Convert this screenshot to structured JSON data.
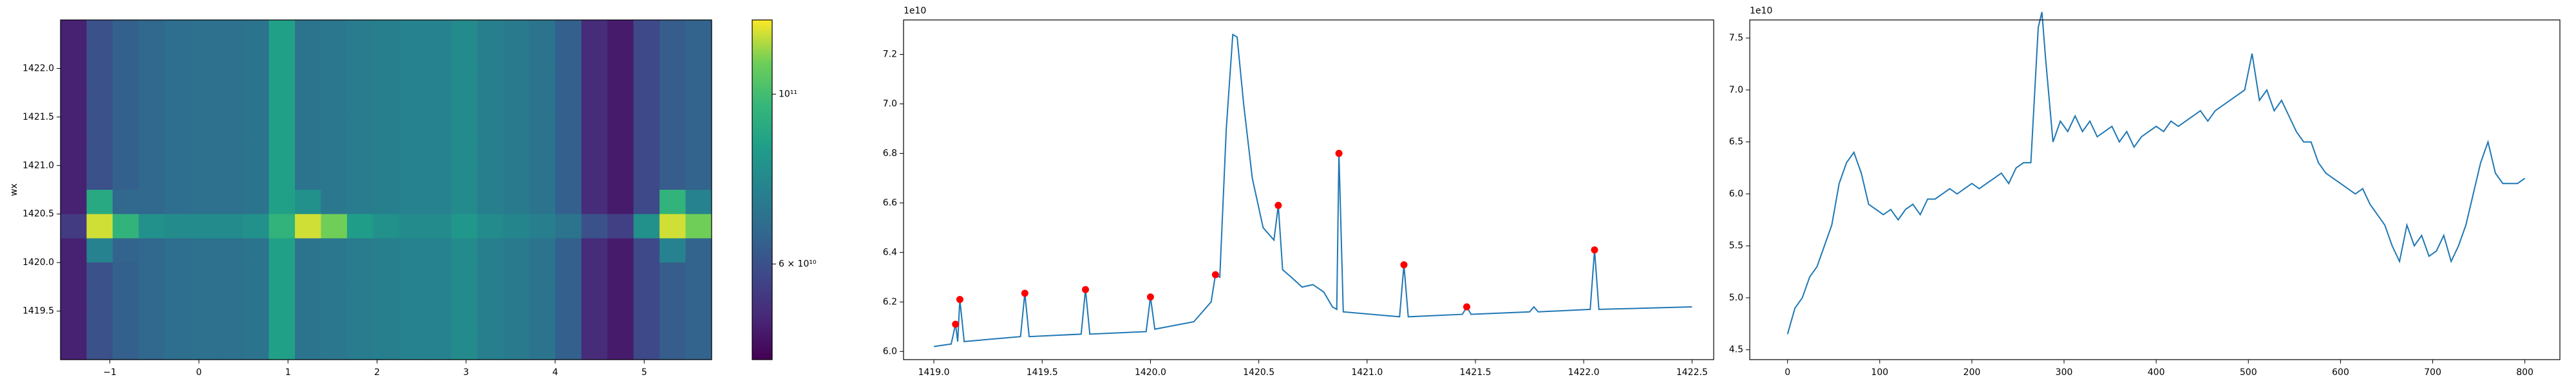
{
  "chart_data": [
    {
      "type": "heatmap",
      "ylabel": "wx",
      "colormap": "viridis",
      "xlim": [
        -1.554,
        5.757
      ],
      "ylim": [
        1419.0,
        1422.5
      ],
      "xticks": [
        {
          "value": -1,
          "label": "−1"
        },
        0,
        1,
        2,
        3,
        4,
        5
      ],
      "yticks": [
        1419.5,
        {
          "value": 1420.0,
          "label": "1420.0"
        },
        1420.5,
        {
          "value": 1421.0,
          "label": "1421.0"
        },
        1421.5,
        {
          "value": 1422.0,
          "label": "1422.0"
        }
      ],
      "z": [
        [
          50000000000.0,
          60000000000.0,
          64000000000.0,
          66000000000.0,
          68000000000.0,
          69000000000.0,
          69000000000.0,
          70000000000.0,
          86000000000.0,
          70000000000.0,
          71000000000.0,
          73000000000.0,
          74000000000.0,
          75000000000.0,
          75000000000.0,
          78000000000.0,
          74000000000.0,
          72000000000.0,
          70000000000.0,
          64000000000.0,
          52000000000.0,
          49000000000.0,
          58000000000.0,
          63000000000.0,
          65000000000.0
        ],
        [
          50000000000.0,
          60000000000.0,
          64000000000.0,
          66000000000.0,
          68000000000.0,
          69000000000.0,
          69000000000.0,
          70000000000.0,
          86000000000.0,
          70000000000.0,
          71000000000.0,
          73000000000.0,
          74000000000.0,
          75000000000.0,
          75000000000.0,
          78000000000.0,
          74000000000.0,
          72000000000.0,
          70000000000.0,
          64000000000.0,
          52000000000.0,
          49000000000.0,
          58000000000.0,
          63000000000.0,
          65000000000.0
        ],
        [
          50000000000.0,
          60000000000.0,
          64000000000.0,
          66000000000.0,
          68000000000.0,
          69000000000.0,
          69000000000.0,
          70000000000.0,
          86000000000.0,
          70000000000.0,
          71000000000.0,
          73000000000.0,
          74000000000.0,
          75000000000.0,
          75000000000.0,
          78000000000.0,
          74000000000.0,
          72000000000.0,
          70000000000.0,
          64000000000.0,
          52000000000.0,
          49000000000.0,
          58000000000.0,
          63000000000.0,
          65000000000.0
        ],
        [
          50000000000.0,
          60000000000.0,
          64000000000.0,
          66000000000.0,
          68000000000.0,
          69000000000.0,
          69000000000.0,
          70000000000.0,
          86000000000.0,
          70000000000.0,
          71000000000.0,
          73000000000.0,
          74000000000.0,
          75000000000.0,
          75000000000.0,
          78000000000.0,
          74000000000.0,
          72000000000.0,
          70000000000.0,
          64000000000.0,
          52000000000.0,
          49000000000.0,
          58000000000.0,
          63000000000.0,
          65000000000.0
        ],
        [
          50000000000.0,
          60000000000.0,
          64000000000.0,
          66000000000.0,
          68000000000.0,
          69000000000.0,
          69000000000.0,
          70000000000.0,
          86000000000.0,
          70000000000.0,
          71000000000.0,
          73000000000.0,
          74000000000.0,
          75000000000.0,
          75000000000.0,
          78000000000.0,
          74000000000.0,
          72000000000.0,
          70000000000.0,
          64000000000.0,
          52000000000.0,
          49000000000.0,
          58000000000.0,
          63000000000.0,
          65000000000.0
        ],
        [
          50000000000.0,
          60000000000.0,
          64000000000.0,
          66000000000.0,
          68000000000.0,
          69000000000.0,
          69000000000.0,
          70000000000.0,
          86000000000.0,
          70000000000.0,
          71000000000.0,
          73000000000.0,
          74000000000.0,
          75000000000.0,
          75000000000.0,
          78000000000.0,
          74000000000.0,
          72000000000.0,
          70000000000.0,
          64000000000.0,
          52000000000.0,
          49000000000.0,
          58000000000.0,
          63000000000.0,
          65000000000.0
        ],
        [
          50000000000.0,
          60000000000.0,
          64000000000.0,
          66000000000.0,
          68000000000.0,
          69000000000.0,
          69000000000.0,
          70000000000.0,
          86000000000.0,
          70000000000.0,
          71000000000.0,
          73000000000.0,
          74000000000.0,
          75000000000.0,
          75000000000.0,
          78000000000.0,
          74000000000.0,
          72000000000.0,
          70000000000.0,
          64000000000.0,
          52000000000.0,
          49000000000.0,
          58000000000.0,
          63000000000.0,
          65000000000.0
        ],
        [
          50000000000.0,
          90000000000.0,
          66000000000.0,
          66000000000.0,
          68000000000.0,
          69000000000.0,
          69000000000.0,
          70000000000.0,
          86000000000.0,
          80000000000.0,
          71000000000.0,
          73000000000.0,
          74000000000.0,
          75000000000.0,
          75000000000.0,
          78000000000.0,
          74000000000.0,
          72000000000.0,
          70000000000.0,
          64000000000.0,
          52000000000.0,
          49000000000.0,
          58000000000.0,
          95000000000.0,
          75000000000.0
        ],
        [
          55000000000.0,
          120000000000.0,
          95000000000.0,
          80000000000.0,
          78000000000.0,
          78000000000.0,
          78000000000.0,
          80000000000.0,
          95000000000.0,
          120000000000.0,
          110000000000.0,
          85000000000.0,
          80000000000.0,
          78000000000.0,
          78000000000.0,
          82000000000.0,
          78000000000.0,
          76000000000.0,
          74000000000.0,
          70000000000.0,
          60000000000.0,
          56000000000.0,
          80000000000.0,
          120000000000.0,
          110000000000.0
        ],
        [
          50000000000.0,
          75000000000.0,
          65000000000.0,
          66000000000.0,
          68000000000.0,
          69000000000.0,
          69000000000.0,
          70000000000.0,
          86000000000.0,
          70000000000.0,
          71000000000.0,
          73000000000.0,
          74000000000.0,
          75000000000.0,
          75000000000.0,
          78000000000.0,
          74000000000.0,
          72000000000.0,
          70000000000.0,
          64000000000.0,
          52000000000.0,
          49000000000.0,
          58000000000.0,
          75000000000.0,
          65000000000.0
        ],
        [
          50000000000.0,
          60000000000.0,
          64000000000.0,
          66000000000.0,
          68000000000.0,
          69000000000.0,
          69000000000.0,
          70000000000.0,
          86000000000.0,
          70000000000.0,
          71000000000.0,
          73000000000.0,
          74000000000.0,
          75000000000.0,
          75000000000.0,
          78000000000.0,
          74000000000.0,
          72000000000.0,
          70000000000.0,
          64000000000.0,
          52000000000.0,
          49000000000.0,
          58000000000.0,
          63000000000.0,
          65000000000.0
        ],
        [
          50000000000.0,
          60000000000.0,
          64000000000.0,
          66000000000.0,
          68000000000.0,
          69000000000.0,
          69000000000.0,
          70000000000.0,
          86000000000.0,
          70000000000.0,
          71000000000.0,
          73000000000.0,
          74000000000.0,
          75000000000.0,
          75000000000.0,
          78000000000.0,
          74000000000.0,
          72000000000.0,
          70000000000.0,
          64000000000.0,
          52000000000.0,
          49000000000.0,
          58000000000.0,
          63000000000.0,
          65000000000.0
        ],
        [
          50000000000.0,
          60000000000.0,
          64000000000.0,
          66000000000.0,
          68000000000.0,
          69000000000.0,
          69000000000.0,
          70000000000.0,
          86000000000.0,
          70000000000.0,
          71000000000.0,
          73000000000.0,
          74000000000.0,
          75000000000.0,
          75000000000.0,
          78000000000.0,
          74000000000.0,
          72000000000.0,
          70000000000.0,
          64000000000.0,
          52000000000.0,
          49000000000.0,
          58000000000.0,
          63000000000.0,
          65000000000.0
        ],
        [
          50000000000.0,
          60000000000.0,
          64000000000.0,
          66000000000.0,
          68000000000.0,
          69000000000.0,
          69000000000.0,
          70000000000.0,
          86000000000.0,
          70000000000.0,
          71000000000.0,
          73000000000.0,
          74000000000.0,
          75000000000.0,
          75000000000.0,
          78000000000.0,
          74000000000.0,
          72000000000.0,
          70000000000.0,
          64000000000.0,
          52000000000.0,
          49000000000.0,
          58000000000.0,
          63000000000.0,
          65000000000.0
        ]
      ],
      "colorbar": {
        "scale": "log",
        "lim": [
          45000000000.0,
          125000000000.0
        ],
        "ticks": [
          {
            "value": 100000000000.0,
            "label": "10¹¹"
          },
          {
            "value": 60000000000.0,
            "label": "6 × 10¹⁰"
          }
        ]
      }
    },
    {
      "type": "line",
      "offset_text": "1e10",
      "xlim": [
        1418.86,
        1422.6
      ],
      "ylim": [
        5.967,
        7.339
      ],
      "xticks": [
        {
          "value": 1419.0,
          "label": "1419.0"
        },
        1419.5,
        {
          "value": 1420.0,
          "label": "1420.0"
        },
        1420.5,
        {
          "value": 1421.0,
          "label": "1421.0"
        },
        1421.5,
        {
          "value": 1422.0,
          "label": "1422.0"
        },
        1422.5
      ],
      "yticks": [
        {
          "value": 6,
          "label": "6.0"
        },
        6.2,
        6.4,
        6.6,
        6.8,
        {
          "value": 7,
          "label": "7.0"
        },
        7.2
      ],
      "series": [
        {
          "type": "line",
          "color": "#1f77b4",
          "x": [
            1419.0,
            1419.08,
            1419.1,
            1419.11,
            1419.12,
            1419.14,
            1419.4,
            1419.42,
            1419.44,
            1419.68,
            1419.7,
            1419.72,
            1419.98,
            1420.0,
            1420.02,
            1420.2,
            1420.28,
            1420.3,
            1420.32,
            1420.35,
            1420.38,
            1420.4,
            1420.43,
            1420.47,
            1420.52,
            1420.57,
            1420.59,
            1420.61,
            1420.65,
            1420.7,
            1420.75,
            1420.8,
            1420.84,
            1420.86,
            1420.87,
            1420.89,
            1421.15,
            1421.17,
            1421.19,
            1421.44,
            1421.46,
            1421.48,
            1421.75,
            1421.77,
            1421.79,
            1422.03,
            1422.05,
            1422.07,
            1422.5
          ],
          "values": [
            6.02,
            6.03,
            6.11,
            6.04,
            6.21,
            6.04,
            6.06,
            6.235,
            6.06,
            6.07,
            6.25,
            6.07,
            6.08,
            6.22,
            6.09,
            6.12,
            6.2,
            6.31,
            6.3,
            6.9,
            7.28,
            7.27,
            7.0,
            6.7,
            6.5,
            6.45,
            6.59,
            6.33,
            6.3,
            6.26,
            6.27,
            6.24,
            6.18,
            6.17,
            6.8,
            6.16,
            6.14,
            6.35,
            6.14,
            6.15,
            6.18,
            6.15,
            6.16,
            6.18,
            6.16,
            6.17,
            6.41,
            6.17,
            6.18
          ]
        },
        {
          "type": "scatter",
          "color": "#ff0000",
          "x": [
            1419.1,
            1419.12,
            1419.42,
            1419.7,
            1420.0,
            1420.3,
            1420.59,
            1420.87,
            1421.17,
            1421.46,
            1422.05
          ],
          "values": [
            6.11,
            6.21,
            6.235,
            6.25,
            6.22,
            6.31,
            6.59,
            6.8,
            6.35,
            6.18,
            6.41
          ]
        }
      ]
    },
    {
      "type": "line",
      "offset_text": "1e10",
      "xlim": [
        -41,
        838
      ],
      "ylim": [
        4.405,
        7.674
      ],
      "xticks": [
        0,
        100,
        200,
        300,
        400,
        500,
        600,
        700,
        800
      ],
      "yticks": [
        4.5,
        {
          "value": 5,
          "label": "5.0"
        },
        5.5,
        {
          "value": 6,
          "label": "6.0"
        },
        6.5,
        {
          "value": 7,
          "label": "7.0"
        },
        7.5
      ],
      "series": [
        {
          "type": "line",
          "color": "#1f77b4",
          "x": [
            0,
            8,
            16,
            24,
            32,
            40,
            48,
            56,
            64,
            72,
            80,
            88,
            96,
            104,
            112,
            120,
            128,
            136,
            144,
            152,
            160,
            168,
            176,
            184,
            192,
            200,
            208,
            216,
            224,
            232,
            240,
            248,
            256,
            264,
            272,
            276,
            280,
            288,
            296,
            304,
            312,
            320,
            328,
            336,
            344,
            352,
            360,
            368,
            376,
            384,
            392,
            400,
            408,
            416,
            424,
            432,
            440,
            448,
            456,
            464,
            472,
            480,
            488,
            496,
            504,
            512,
            520,
            528,
            536,
            544,
            552,
            560,
            568,
            576,
            584,
            592,
            600,
            608,
            616,
            624,
            632,
            640,
            648,
            656,
            664,
            672,
            680,
            688,
            696,
            704,
            712,
            720,
            728,
            736,
            744,
            752,
            760,
            768,
            776,
            784,
            792,
            800
          ],
          "values": [
            4.65,
            4.9,
            5.0,
            5.2,
            5.3,
            5.5,
            5.7,
            6.1,
            6.3,
            6.4,
            6.2,
            5.9,
            5.85,
            5.8,
            5.85,
            5.75,
            5.85,
            5.9,
            5.8,
            5.95,
            5.95,
            6.0,
            6.05,
            6.0,
            6.05,
            6.1,
            6.05,
            6.1,
            6.15,
            6.2,
            6.1,
            6.25,
            6.3,
            6.3,
            7.6,
            7.75,
            7.3,
            6.5,
            6.7,
            6.6,
            6.75,
            6.6,
            6.7,
            6.55,
            6.6,
            6.65,
            6.5,
            6.6,
            6.45,
            6.55,
            6.6,
            6.65,
            6.6,
            6.7,
            6.65,
            6.7,
            6.75,
            6.8,
            6.7,
            6.8,
            6.85,
            6.9,
            6.95,
            7.0,
            7.35,
            6.9,
            7.0,
            6.8,
            6.9,
            6.75,
            6.6,
            6.5,
            6.5,
            6.3,
            6.2,
            6.15,
            6.1,
            6.05,
            6.0,
            6.05,
            5.9,
            5.8,
            5.7,
            5.5,
            5.35,
            5.7,
            5.5,
            5.6,
            5.4,
            5.45,
            5.6,
            5.35,
            5.5,
            5.7,
            6.0,
            6.3,
            6.5,
            6.2,
            6.1,
            6.1,
            6.1,
            6.15
          ]
        }
      ]
    }
  ]
}
